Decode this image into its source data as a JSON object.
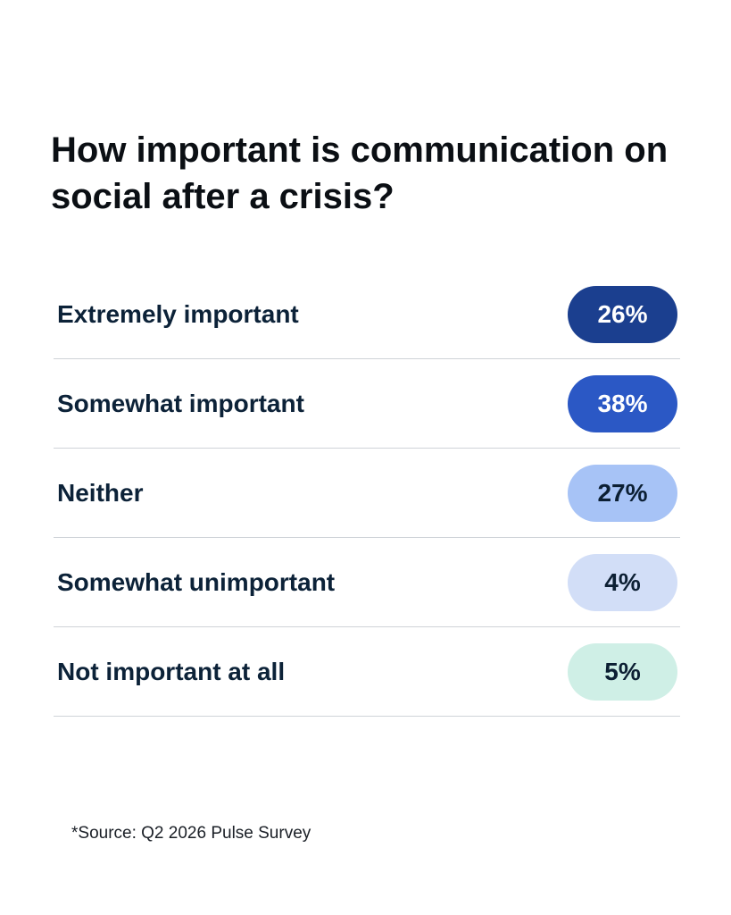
{
  "title": "How important is communication on social after a crisis?",
  "rows": [
    {
      "label": "Extremely important",
      "value": "26%",
      "color": "#1b3f8f",
      "text_color": "#ffffff"
    },
    {
      "label": "Somewhat important",
      "value": "38%",
      "color": "#2b58c5",
      "text_color": "#ffffff"
    },
    {
      "label": "Neither",
      "value": "27%",
      "color": "#a7c3f6",
      "text_color": "#0c1f33"
    },
    {
      "label": "Somewhat unimportant",
      "value": "4%",
      "color": "#d2def7",
      "text_color": "#0c1f33"
    },
    {
      "label": "Not important at all",
      "value": "5%",
      "color": "#cfefe6",
      "text_color": "#0c1f33"
    }
  ],
  "source": "*Source: Q2 2026 Pulse Survey"
}
